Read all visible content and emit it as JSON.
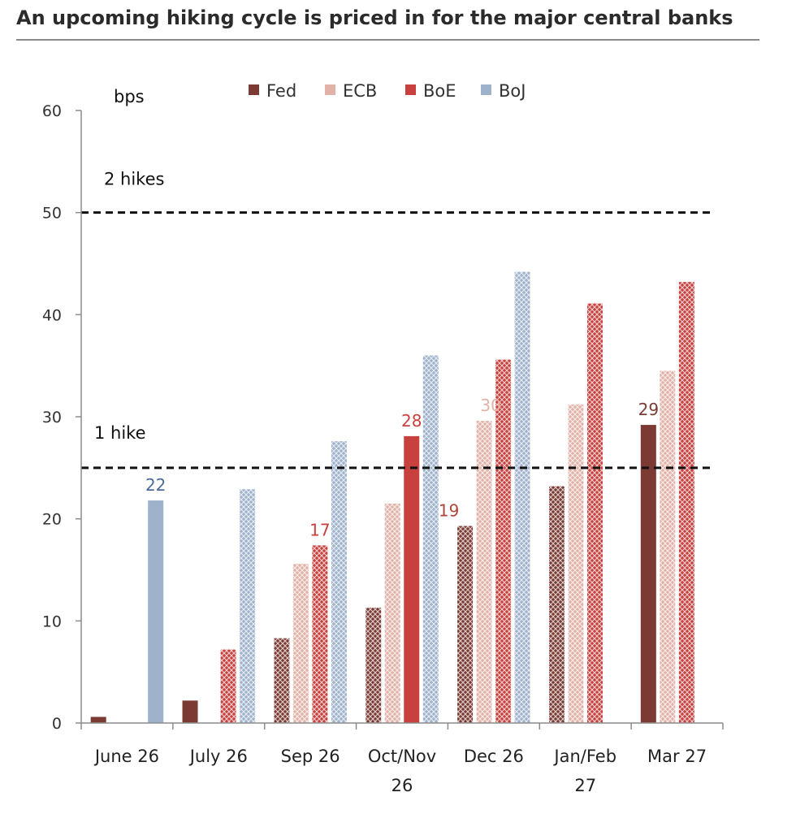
{
  "title": "An upcoming hiking cycle is priced in for the major central banks",
  "chart_data": {
    "type": "bar",
    "title": "An upcoming hiking cycle is priced in for the major central banks",
    "ylabel": "bps",
    "xlabel": "",
    "ylim": [
      0,
      60
    ],
    "yticks": [
      0,
      10,
      20,
      30,
      40,
      50,
      60
    ],
    "grid": false,
    "legend_position": "top",
    "categories": [
      [
        "June 26"
      ],
      [
        "July 26"
      ],
      [
        "Sep 26"
      ],
      [
        "Oct/Nov",
        "26"
      ],
      [
        "Dec 26"
      ],
      [
        "Jan/Feb",
        "27"
      ],
      [
        "Mar 27"
      ]
    ],
    "series": [
      {
        "name": "Fed",
        "color": "#7b3b34",
        "values": [
          0.6,
          2.2,
          8.3,
          11.3,
          19.3,
          23.2,
          29.2
        ]
      },
      {
        "name": "ECB",
        "color": "#e2b2a8",
        "values": [
          0,
          0,
          15.6,
          21.5,
          29.6,
          31.2,
          34.5
        ]
      },
      {
        "name": "BoE",
        "color": "#c9413e",
        "values": [
          0,
          7.2,
          17.4,
          28.1,
          35.6,
          41.1,
          43.2
        ]
      },
      {
        "name": "BoJ",
        "color": "#9fb2cc",
        "values": [
          21.8,
          22.9,
          27.6,
          36.0,
          44.2,
          null,
          null
        ]
      }
    ],
    "reference_lines": [
      {
        "value": 50,
        "label": "2 hikes"
      },
      {
        "value": 25,
        "label": "1 hike"
      }
    ],
    "data_labels": [
      {
        "category": 0,
        "series": 3,
        "text": "22",
        "color": "#4a6a9a"
      },
      {
        "category": 2,
        "series": 2,
        "text": "17",
        "color": "#c9413e"
      },
      {
        "category": 3,
        "series": 2,
        "text": "28",
        "color": "#c9413e"
      },
      {
        "category": 4,
        "series": 0,
        "text": "19",
        "color": "#b0443a"
      },
      {
        "category": 4,
        "series": 1,
        "text": "30",
        "color": "#e2b2a8"
      },
      {
        "category": 6,
        "series": 0,
        "text": "29",
        "color": "#7b3b34"
      }
    ],
    "solid_bars": [
      {
        "category": 0,
        "series": 0
      },
      {
        "category": 0,
        "series": 3
      },
      {
        "category": 1,
        "series": 0
      },
      {
        "category": 3,
        "series": 2
      },
      {
        "category": 6,
        "series": 0
      }
    ]
  }
}
